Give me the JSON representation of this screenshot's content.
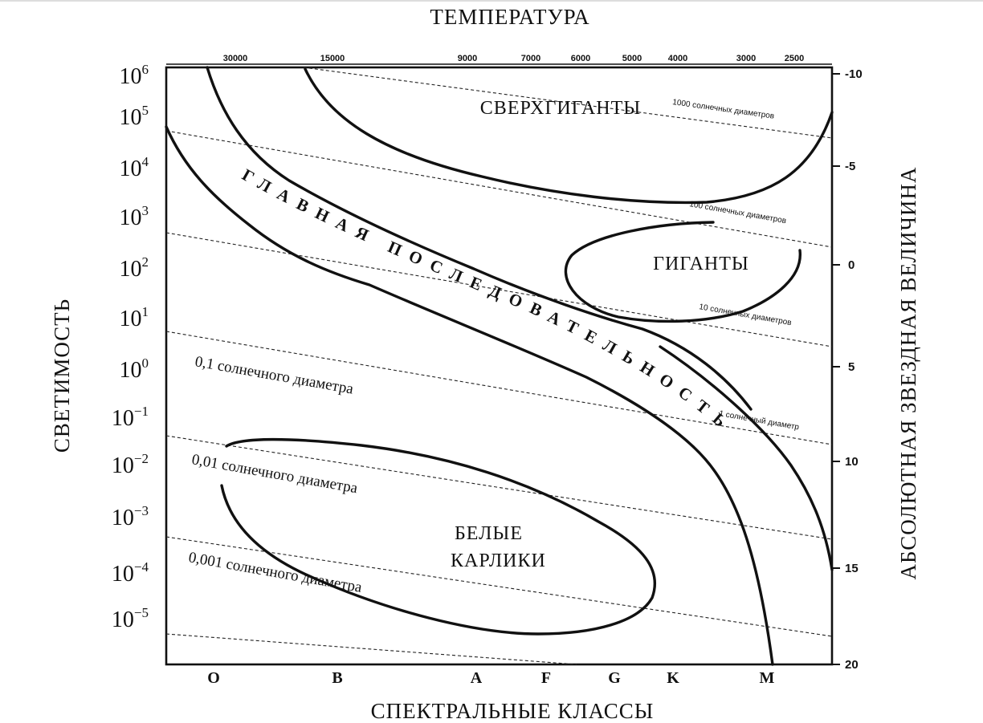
{
  "top_title": "ТЕМПЕРАТУРА",
  "bottom_title": "СПЕКТРАЛЬНЫЕ КЛАССЫ",
  "left_title": "СВЕТИМОСТЬ",
  "right_title": "АБСОЛЮТНАЯ ЗВЕЗДНАЯ ВЕЛИЧИНА",
  "luminosity_ticks": [
    {
      "base": "10",
      "exp": "6"
    },
    {
      "base": "10",
      "exp": "5"
    },
    {
      "base": "10",
      "exp": "4"
    },
    {
      "base": "10",
      "exp": "3"
    },
    {
      "base": "10",
      "exp": "2"
    },
    {
      "base": "10",
      "exp": "1"
    },
    {
      "base": "10",
      "exp": "0"
    },
    {
      "base": "10",
      "exp": "−1"
    },
    {
      "base": "10",
      "exp": "−2"
    },
    {
      "base": "10",
      "exp": "−3"
    },
    {
      "base": "10",
      "exp": "−4"
    },
    {
      "base": "10",
      "exp": "−5"
    }
  ],
  "magnitude_ticks": [
    "-10",
    "-5",
    "0",
    "5",
    "10",
    "15",
    "20"
  ],
  "temperature_ticks": [
    "30000",
    "15000",
    "9000",
    "7000",
    "6000",
    "5000",
    "4000",
    "3000",
    "2500"
  ],
  "spectral_classes": [
    "O",
    "B",
    "A",
    "F",
    "G",
    "K",
    "M"
  ],
  "regions": {
    "supergiants": "СВЕРХГИГАНТЫ",
    "giants": "ГИГАНТЫ",
    "main_sequence": "ГЛАВНАЯ ПОСЛЕДОВАТЕЛЬНОСТЬ",
    "white_dwarfs_1": "БЕЛЫЕ",
    "white_dwarfs_2": "КАРЛИКИ"
  },
  "diameter_lines": {
    "d1000": "1000 солнечных диаметров",
    "d100": "100 солнечных диаметров",
    "d10": "10 солнечных диаметров",
    "d1": "1 солнечный диаметр",
    "d01": "0,1 солнечного диаметра",
    "d001": "0,01 солнечного диаметра",
    "d0001": "0,001 солнечного диаметра"
  }
}
